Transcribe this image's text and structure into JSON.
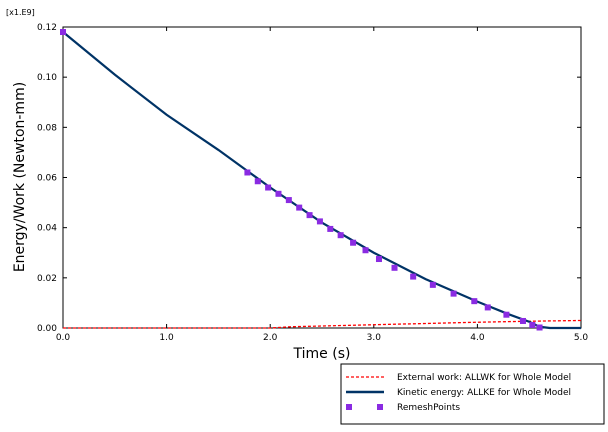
{
  "chart_data": {
    "type": "line",
    "title": "",
    "scale_factor_label": "[x1.E9]",
    "xlabel": "Time (s)",
    "ylabel": "Energy/Work (Newton-mm)",
    "xlim": [
      0.0,
      5.0
    ],
    "ylim": [
      0.0,
      0.12
    ],
    "x_ticks": [
      0.0,
      1.0,
      2.0,
      3.0,
      4.0,
      5.0
    ],
    "x_tick_labels": [
      "0.0",
      "1.0",
      "2.0",
      "3.0",
      "4.0",
      "5.0"
    ],
    "y_ticks": [
      0.0,
      0.02,
      0.04,
      0.06,
      0.08,
      0.1,
      0.12
    ],
    "y_tick_labels": [
      "0.00",
      "0.02",
      "0.04",
      "0.06",
      "0.08",
      "0.10",
      "0.12"
    ],
    "grid": false,
    "legend_position": "bottom-right",
    "series": [
      {
        "name": "External work: ALLWK for Whole Model",
        "style": "dashed",
        "color": "#ff0000",
        "x": [
          0.0,
          1.0,
          2.0,
          2.2,
          2.6,
          3.0,
          3.5,
          4.0,
          4.5,
          5.0
        ],
        "y": [
          0.0,
          0.0,
          0.0,
          0.0005,
          0.0009,
          0.0013,
          0.0018,
          0.0023,
          0.0027,
          0.003
        ]
      },
      {
        "name": "Kinetic energy: ALLKE for Whole Model",
        "style": "solid",
        "color": "#003366",
        "x": [
          0.0,
          0.5,
          1.0,
          1.5,
          1.8,
          2.0,
          2.5,
          3.0,
          3.5,
          4.0,
          4.3,
          4.5,
          4.6,
          4.7,
          5.0
        ],
        "y": [
          0.118,
          0.101,
          0.085,
          0.071,
          0.062,
          0.056,
          0.042,
          0.03,
          0.0195,
          0.0105,
          0.0055,
          0.0025,
          0.0005,
          0.0,
          0.0
        ]
      },
      {
        "name": "RemeshPoints",
        "style": "markers",
        "color": "#8a2be2",
        "x": [
          0.0,
          1.78,
          1.88,
          1.98,
          2.08,
          2.18,
          2.28,
          2.38,
          2.48,
          2.58,
          2.68,
          2.8,
          2.92,
          3.05,
          3.2,
          3.38,
          3.57,
          3.77,
          3.97,
          4.1,
          4.28,
          4.44,
          4.53,
          4.6
        ],
        "y": [
          0.118,
          0.062,
          0.0585,
          0.056,
          0.0535,
          0.051,
          0.048,
          0.045,
          0.0425,
          0.0395,
          0.037,
          0.034,
          0.031,
          0.0275,
          0.024,
          0.0205,
          0.0172,
          0.0137,
          0.0107,
          0.0082,
          0.0053,
          0.0028,
          0.0012,
          0.0002
        ]
      }
    ]
  }
}
